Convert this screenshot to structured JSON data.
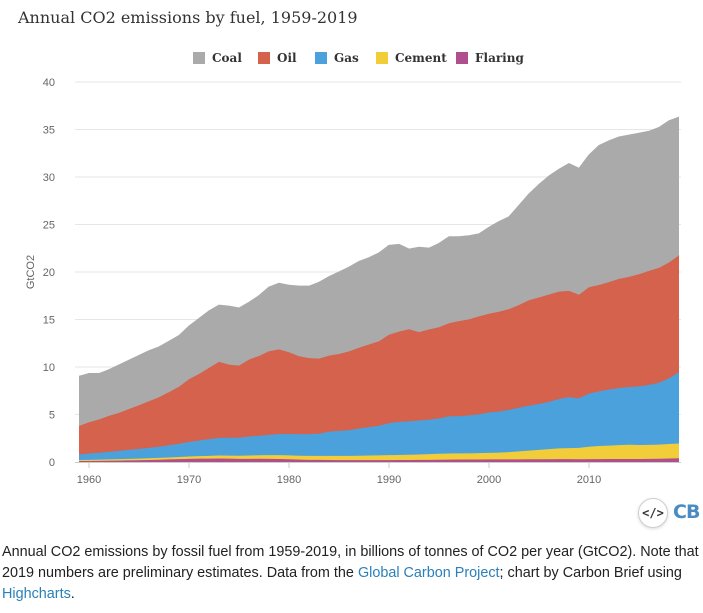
{
  "chart_data": {
    "type": "area",
    "stacked": true,
    "title": "Annual CO2 emissions by fuel, 1959-2019",
    "ylabel": "GtCO2",
    "xlabel": "",
    "x": [
      1959,
      1960,
      1961,
      1962,
      1963,
      1964,
      1965,
      1966,
      1967,
      1968,
      1969,
      1970,
      1971,
      1972,
      1973,
      1974,
      1975,
      1976,
      1977,
      1978,
      1979,
      1980,
      1981,
      1982,
      1983,
      1984,
      1985,
      1986,
      1987,
      1988,
      1989,
      1990,
      1991,
      1992,
      1993,
      1994,
      1995,
      1996,
      1997,
      1998,
      1999,
      2000,
      2001,
      2002,
      2003,
      2004,
      2005,
      2006,
      2007,
      2008,
      2009,
      2010,
      2011,
      2012,
      2013,
      2014,
      2015,
      2016,
      2017,
      2018,
      2019
    ],
    "xticks": [
      "1960",
      "1970",
      "1980",
      "1990",
      "2000",
      "2010"
    ],
    "yticks": [
      "0",
      "5",
      "10",
      "15",
      "20",
      "25",
      "30",
      "35",
      "40"
    ],
    "ylim": [
      0,
      40
    ],
    "xlim": [
      1958.6,
      2019.2
    ],
    "grid": "horizontal",
    "legend_position": "top",
    "series": [
      {
        "name": "Flaring",
        "color": "#b04f8e",
        "values": [
          0.1,
          0.11,
          0.12,
          0.13,
          0.15,
          0.17,
          0.19,
          0.21,
          0.24,
          0.27,
          0.3,
          0.33,
          0.35,
          0.36,
          0.37,
          0.35,
          0.33,
          0.33,
          0.34,
          0.33,
          0.32,
          0.29,
          0.25,
          0.23,
          0.22,
          0.21,
          0.2,
          0.2,
          0.2,
          0.2,
          0.2,
          0.2,
          0.21,
          0.21,
          0.22,
          0.23,
          0.24,
          0.25,
          0.26,
          0.26,
          0.26,
          0.27,
          0.27,
          0.27,
          0.28,
          0.29,
          0.29,
          0.29,
          0.3,
          0.3,
          0.29,
          0.3,
          0.3,
          0.31,
          0.31,
          0.32,
          0.32,
          0.33,
          0.34,
          0.37,
          0.39
        ]
      },
      {
        "name": "Cement",
        "color": "#f2cd3a",
        "values": [
          0.11,
          0.12,
          0.13,
          0.14,
          0.15,
          0.16,
          0.17,
          0.18,
          0.19,
          0.21,
          0.23,
          0.25,
          0.27,
          0.29,
          0.31,
          0.32,
          0.33,
          0.35,
          0.37,
          0.39,
          0.4,
          0.41,
          0.41,
          0.41,
          0.42,
          0.43,
          0.44,
          0.45,
          0.46,
          0.48,
          0.5,
          0.52,
          0.53,
          0.55,
          0.57,
          0.6,
          0.63,
          0.64,
          0.65,
          0.65,
          0.67,
          0.69,
          0.72,
          0.77,
          0.84,
          0.91,
          0.98,
          1.06,
          1.13,
          1.16,
          1.2,
          1.3,
          1.38,
          1.42,
          1.47,
          1.5,
          1.47,
          1.47,
          1.49,
          1.53,
          1.56
        ]
      },
      {
        "name": "Gas",
        "color": "#4ba1dc",
        "values": [
          0.58,
          0.66,
          0.72,
          0.79,
          0.87,
          0.95,
          1.02,
          1.1,
          1.18,
          1.28,
          1.39,
          1.53,
          1.64,
          1.76,
          1.86,
          1.88,
          1.89,
          2.0,
          2.05,
          2.14,
          2.23,
          2.25,
          2.27,
          2.3,
          2.34,
          2.56,
          2.63,
          2.69,
          2.86,
          2.99,
          3.11,
          3.37,
          3.48,
          3.52,
          3.58,
          3.62,
          3.72,
          3.91,
          3.92,
          4.0,
          4.1,
          4.25,
          4.33,
          4.45,
          4.6,
          4.72,
          4.85,
          4.98,
          5.2,
          5.35,
          5.22,
          5.6,
          5.75,
          5.9,
          6.0,
          6.07,
          6.17,
          6.32,
          6.51,
          6.9,
          7.5
        ]
      },
      {
        "name": "Oil",
        "color": "#d4624c",
        "values": [
          3.0,
          3.3,
          3.5,
          3.8,
          4.0,
          4.3,
          4.6,
          4.9,
          5.2,
          5.6,
          6.0,
          6.6,
          7.0,
          7.5,
          8.0,
          7.7,
          7.6,
          8.1,
          8.4,
          8.8,
          8.9,
          8.6,
          8.2,
          8.0,
          7.9,
          8.0,
          8.1,
          8.3,
          8.5,
          8.7,
          8.9,
          9.3,
          9.5,
          9.7,
          9.3,
          9.5,
          9.6,
          9.8,
          10.0,
          10.1,
          10.3,
          10.4,
          10.5,
          10.6,
          10.8,
          11.1,
          11.2,
          11.3,
          11.3,
          11.2,
          10.9,
          11.2,
          11.2,
          11.3,
          11.5,
          11.6,
          11.8,
          12.0,
          12.1,
          12.2,
          12.3
        ]
      },
      {
        "name": "Coal",
        "color": "#aaaaaa",
        "values": [
          5.21,
          5.11,
          4.83,
          4.84,
          5.03,
          5.12,
          5.22,
          5.31,
          5.29,
          5.34,
          5.38,
          5.59,
          5.84,
          5.99,
          5.96,
          6.15,
          6.05,
          6.02,
          6.34,
          6.74,
          6.95,
          7.05,
          7.37,
          7.56,
          8.02,
          8.3,
          8.63,
          8.86,
          9.08,
          9.13,
          9.29,
          9.41,
          9.18,
          8.42,
          8.93,
          8.55,
          8.81,
          9.1,
          8.87,
          8.79,
          8.67,
          9.09,
          9.48,
          9.71,
          10.48,
          11.18,
          11.88,
          12.47,
          12.87,
          13.39,
          13.29,
          13.9,
          14.67,
          14.87,
          14.92,
          14.91,
          14.84,
          14.68,
          14.76,
          14.9,
          14.55
        ]
      }
    ]
  },
  "legend_order": [
    "Coal",
    "Oil",
    "Gas",
    "Cement",
    "Flaring"
  ],
  "embed_icon": "code-embed-icon",
  "embed_label": "</>",
  "brand_logo": "CB",
  "caption": {
    "text_before": "Annual CO2 emissions by fossil fuel from 1959-2019, in billions of tonnes of CO2 per year (GtCO2). Note that 2019 numbers are preliminary estimates. Data from the ",
    "link1": "Global Carbon Project",
    "text_middle": "; chart by Carbon Brief using ",
    "link2": "Highcharts",
    "text_after": "."
  }
}
